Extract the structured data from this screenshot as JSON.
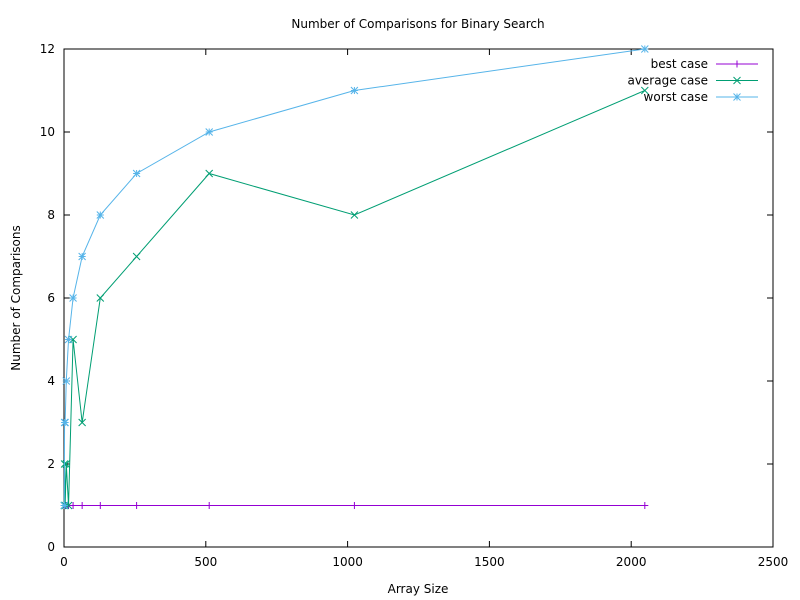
{
  "chart_data": {
    "type": "line",
    "title": "Number of Comparisons for Binary Search",
    "xlabel": "Array Size",
    "ylabel": "Number of Comparisons",
    "xlim": [
      0,
      2500
    ],
    "ylim": [
      0,
      12
    ],
    "xticks": [
      0,
      500,
      1000,
      1500,
      2000,
      2500
    ],
    "yticks": [
      0,
      2,
      4,
      6,
      8,
      10,
      12
    ],
    "grid": false,
    "legend_position": "top-right",
    "x": [
      1,
      2,
      4,
      8,
      16,
      32,
      64,
      128,
      256,
      512,
      1024,
      2048
    ],
    "series": [
      {
        "name": "best case",
        "color": "#9400d3",
        "marker": "plus",
        "values": [
          1,
          1,
          1,
          1,
          1,
          1,
          1,
          1,
          1,
          1,
          1,
          1
        ]
      },
      {
        "name": "average case",
        "color": "#009e73",
        "marker": "cross",
        "values": [
          1,
          2,
          1,
          2,
          1,
          5,
          3,
          6,
          7,
          9,
          8,
          11
        ]
      },
      {
        "name": "worst case",
        "color": "#56b4e9",
        "marker": "star",
        "values": [
          1,
          3,
          3,
          4,
          5,
          6,
          7,
          8,
          9,
          10,
          11,
          12
        ]
      }
    ]
  }
}
